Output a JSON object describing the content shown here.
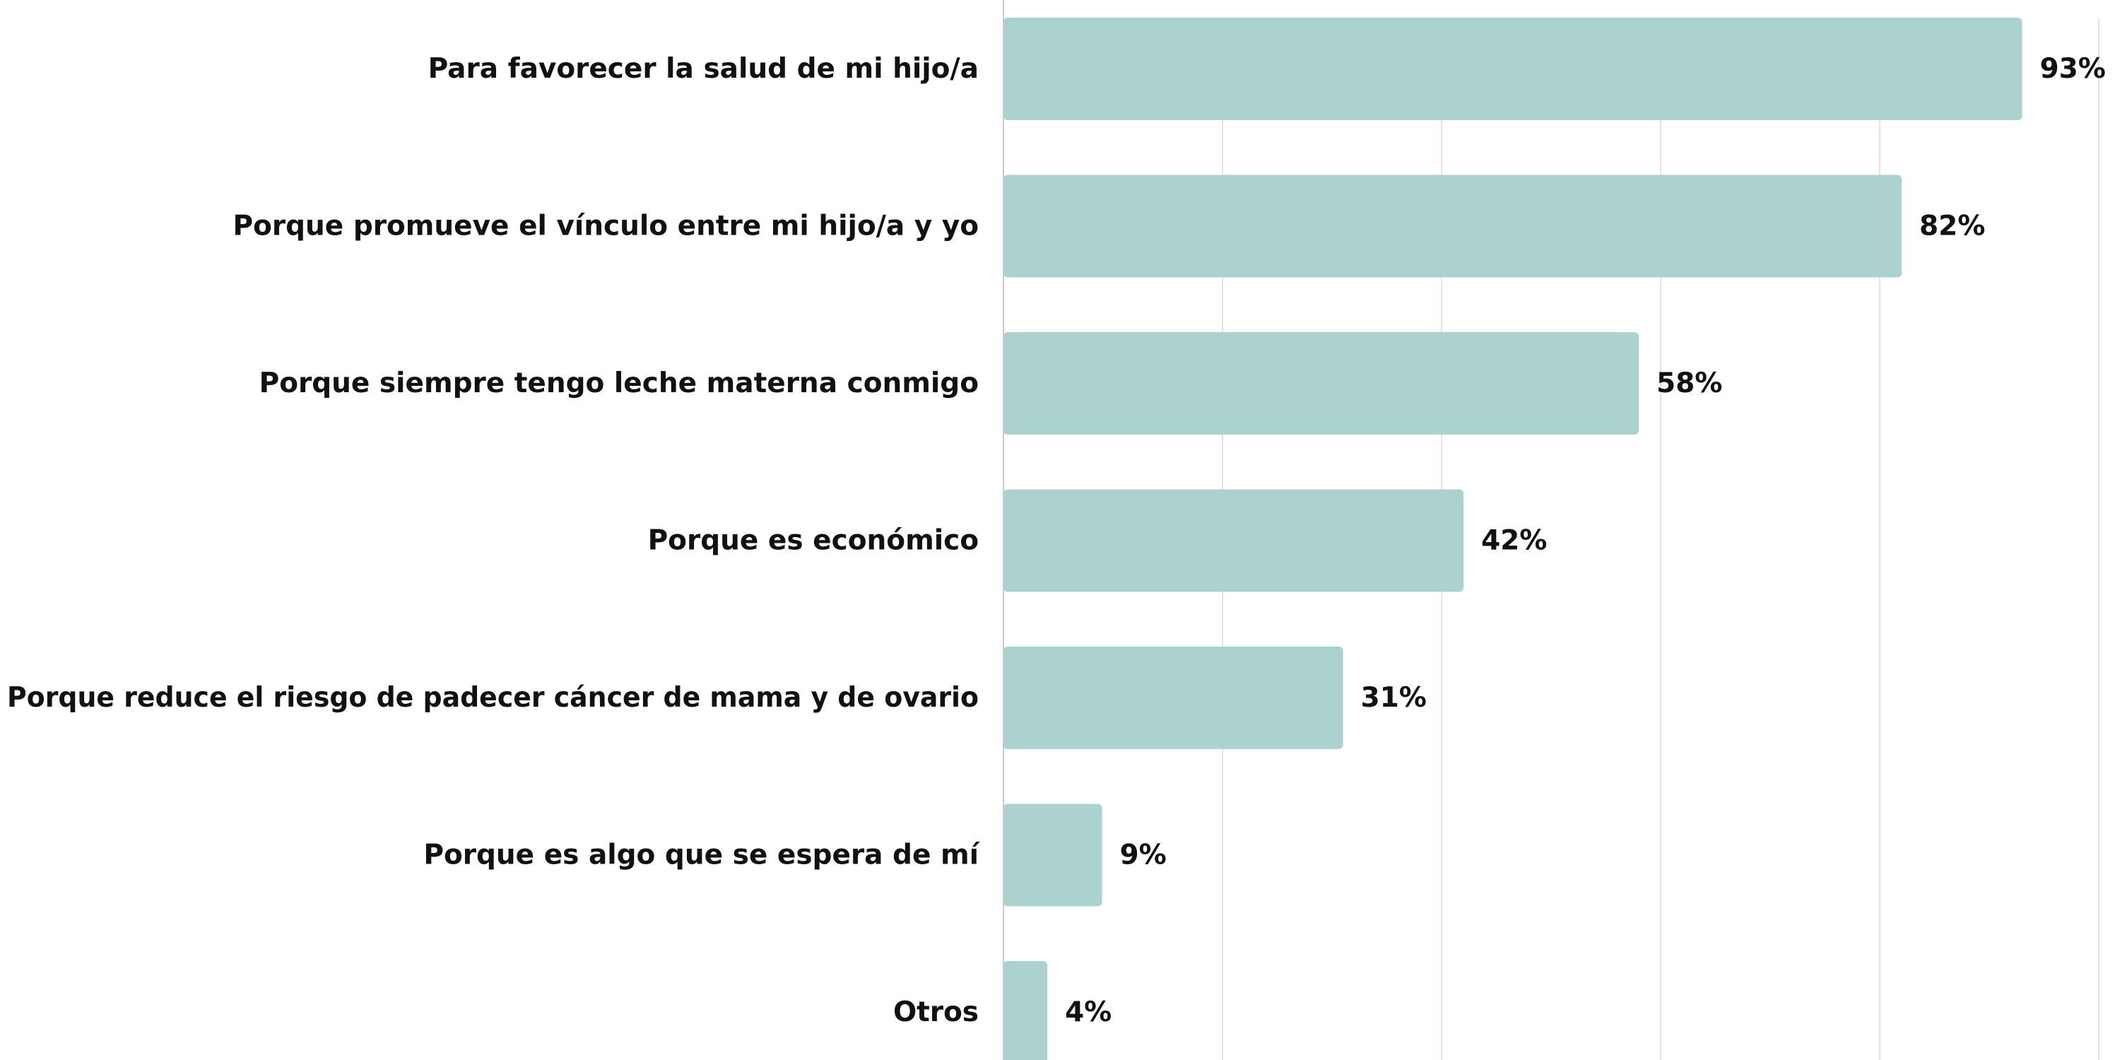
{
  "chart_data": {
    "type": "bar",
    "orientation": "horizontal",
    "categories": [
      "Para favorecer la salud de mi hijo/a",
      "Porque promueve el vínculo entre mi hijo/a y yo",
      "Porque siempre tengo leche materna conmigo",
      "Porque es económico",
      "Porque reduce el riesgo de padecer cáncer de mama y de ovario",
      "Porque es algo que se espera de mí",
      "Otros"
    ],
    "values": [
      93,
      82,
      58,
      42,
      31,
      9,
      4
    ],
    "value_labels": [
      "93%",
      "82%",
      "58%",
      "42%",
      "31%",
      "9%",
      "4%"
    ],
    "unit": "%",
    "xlim": [
      0,
      100
    ],
    "grid": true,
    "legend": "none",
    "colors": {
      "bar": "#abd2cf",
      "grid": "#e3e3e3",
      "axis": "#c9c9c9",
      "text": "#111111"
    }
  }
}
